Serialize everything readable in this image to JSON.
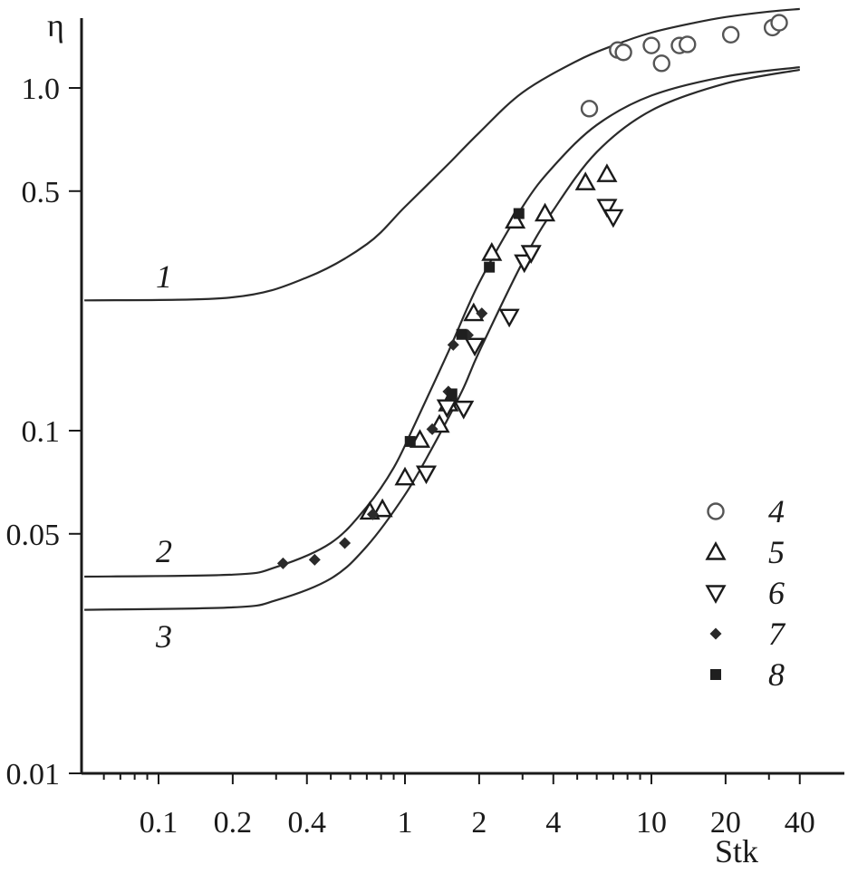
{
  "chart_data": {
    "type": "scatter",
    "title": "",
    "xlabel": "Stk",
    "ylabel": "η",
    "x_scale": "log",
    "y_scale": "log",
    "xlim": [
      0.05,
      45
    ],
    "ylim": [
      0.01,
      2
    ],
    "x_ticks": [
      {
        "value": 0.1,
        "label": "0.1"
      },
      {
        "value": 0.2,
        "label": "0.2"
      },
      {
        "value": 0.4,
        "label": "0.4"
      },
      {
        "value": 1,
        "label": "1"
      },
      {
        "value": 2,
        "label": "2"
      },
      {
        "value": 4,
        "label": "4"
      },
      {
        "value": 10,
        "label": "10"
      },
      {
        "value": 20,
        "label": "20"
      },
      {
        "value": 40,
        "label": "40"
      }
    ],
    "y_ticks": [
      {
        "value": 0.01,
        "label": "0.01"
      },
      {
        "value": 0.05,
        "label": "0.05"
      },
      {
        "value": 0.1,
        "label": "0.1"
      },
      {
        "value": 0.5,
        "label": "0.5"
      },
      {
        "value": 1.0,
        "label": "1.0"
      }
    ],
    "grid": false,
    "legend_position": "bottom-right",
    "curves": [
      {
        "label": "1",
        "points": [
          [
            0.05,
            0.24
          ],
          [
            0.2,
            0.245
          ],
          [
            0.4,
            0.28
          ],
          [
            0.7,
            0.35
          ],
          [
            1,
            0.45
          ],
          [
            1.5,
            0.6
          ],
          [
            2,
            0.74
          ],
          [
            3,
            0.97
          ],
          [
            5,
            1.2
          ],
          [
            7,
            1.33
          ],
          [
            10,
            1.45
          ],
          [
            15,
            1.55
          ],
          [
            20,
            1.61
          ],
          [
            30,
            1.67
          ],
          [
            40,
            1.7
          ]
        ]
      },
      {
        "label": "2",
        "points": [
          [
            0.05,
            0.0375
          ],
          [
            0.2,
            0.038
          ],
          [
            0.3,
            0.04
          ],
          [
            0.5,
            0.047
          ],
          [
            0.7,
            0.06
          ],
          [
            0.9,
            0.078
          ],
          [
            1.1,
            0.105
          ],
          [
            1.5,
            0.17
          ],
          [
            2,
            0.27
          ],
          [
            3,
            0.45
          ],
          [
            4,
            0.59
          ],
          [
            6,
            0.78
          ],
          [
            10,
            0.95
          ],
          [
            20,
            1.08
          ],
          [
            40,
            1.15
          ]
        ]
      },
      {
        "label": "3",
        "points": [
          [
            0.05,
            0.03
          ],
          [
            0.2,
            0.0305
          ],
          [
            0.3,
            0.032
          ],
          [
            0.5,
            0.037
          ],
          [
            0.7,
            0.046
          ],
          [
            1,
            0.065
          ],
          [
            1.3,
            0.09
          ],
          [
            1.7,
            0.13
          ],
          [
            2,
            0.17
          ],
          [
            3,
            0.31
          ],
          [
            4,
            0.44
          ],
          [
            6,
            0.65
          ],
          [
            10,
            0.86
          ],
          [
            20,
            1.03
          ],
          [
            40,
            1.13
          ]
        ]
      }
    ],
    "series": [
      {
        "name": "4",
        "marker": "circle-open",
        "points": [
          [
            5.6,
            0.87
          ],
          [
            7.3,
            1.29
          ],
          [
            7.7,
            1.27
          ],
          [
            10,
            1.33
          ],
          [
            11,
            1.18
          ],
          [
            13,
            1.33
          ],
          [
            14,
            1.34
          ],
          [
            21,
            1.43
          ],
          [
            31,
            1.5
          ],
          [
            33,
            1.55
          ]
        ]
      },
      {
        "name": "5",
        "marker": "triangle-up-open",
        "points": [
          [
            0.72,
            0.058
          ],
          [
            0.81,
            0.059
          ],
          [
            1.0,
            0.073
          ],
          [
            1.15,
            0.094
          ],
          [
            1.38,
            0.104
          ],
          [
            1.5,
            0.12
          ],
          [
            1.9,
            0.22
          ],
          [
            2.25,
            0.33
          ],
          [
            2.8,
            0.41
          ],
          [
            3.7,
            0.43
          ],
          [
            5.4,
            0.53
          ],
          [
            6.6,
            0.56
          ]
        ]
      },
      {
        "name": "6",
        "marker": "triangle-down-open",
        "points": [
          [
            1.22,
            0.075
          ],
          [
            1.48,
            0.117
          ],
          [
            1.73,
            0.116
          ],
          [
            1.92,
            0.177
          ],
          [
            2.65,
            0.215
          ],
          [
            3.05,
            0.31
          ],
          [
            3.25,
            0.33
          ],
          [
            6.6,
            0.45
          ],
          [
            7.0,
            0.42
          ]
        ]
      },
      {
        "name": "7",
        "marker": "diamond-filled",
        "points": [
          [
            0.32,
            0.041
          ],
          [
            0.43,
            0.042
          ],
          [
            0.57,
            0.047
          ],
          [
            0.74,
            0.057
          ],
          [
            1.29,
            0.101
          ],
          [
            1.5,
            0.13
          ],
          [
            1.57,
            0.178
          ],
          [
            1.8,
            0.19
          ],
          [
            2.05,
            0.22
          ]
        ]
      },
      {
        "name": "8",
        "marker": "square-filled",
        "points": [
          [
            1.05,
            0.093
          ],
          [
            1.55,
            0.128
          ],
          [
            1.7,
            0.191
          ],
          [
            2.2,
            0.3
          ],
          [
            2.9,
            0.43
          ]
        ]
      }
    ]
  }
}
